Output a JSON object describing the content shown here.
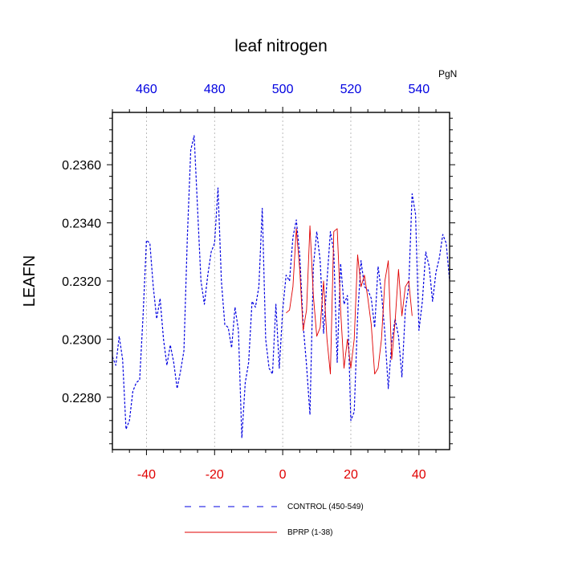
{
  "chart_data": {
    "type": "line",
    "title": "leaf nitrogen",
    "ylabel": "LEAFN",
    "xlabel": "",
    "xlim": [
      -50,
      49
    ],
    "ylim": [
      0.2262,
      0.2378
    ],
    "top_axis": {
      "unit": "PgN",
      "ticks": [
        460,
        480,
        500,
        520,
        540
      ],
      "offset": 500
    },
    "bottom_axis": {
      "ticks": [
        -40,
        -20,
        0,
        20,
        40
      ]
    },
    "y_ticks": [
      0.228,
      0.23,
      0.232,
      0.234,
      0.236
    ],
    "y_tick_labels": [
      "0.2280",
      "0.2300",
      "0.2320",
      "0.2340",
      "0.2360"
    ],
    "bottom_tick_labels": [
      "-40",
      "-20",
      "0",
      "20",
      "40"
    ],
    "top_tick_labels": [
      "460",
      "480",
      "500",
      "520",
      "540"
    ],
    "colors": {
      "control": "#0000e0",
      "bprp": "#e00000",
      "axis": "#000000",
      "grid": "#aaaaaa"
    },
    "series": [
      {
        "name": "CONTROL (450-549)",
        "style": "dashed",
        "x": [
          -50,
          -49,
          -48,
          -47,
          -46,
          -45,
          -44,
          -43,
          -42,
          -41,
          -40,
          -39,
          -38,
          -37,
          -36,
          -35,
          -34,
          -33,
          -32,
          -31,
          -30,
          -29,
          -28,
          -27,
          -26,
          -25,
          -24,
          -23,
          -22,
          -21,
          -20,
          -19,
          -18,
          -17,
          -16,
          -15,
          -14,
          -13,
          -12,
          -11,
          -10,
          -9,
          -8,
          -7,
          -6,
          -5,
          -4,
          -3,
          -2,
          -1,
          0,
          1,
          2,
          3,
          4,
          5,
          6,
          7,
          8,
          9,
          10,
          11,
          12,
          13,
          14,
          15,
          16,
          17,
          18,
          19,
          20,
          21,
          22,
          23,
          24,
          25,
          26,
          27,
          28,
          29,
          30,
          31,
          32,
          33,
          34,
          35,
          36,
          37,
          38,
          39,
          40,
          41,
          42,
          43,
          44,
          45,
          46,
          47,
          48,
          49
        ],
        "values": [
          0.2294,
          0.2291,
          0.2301,
          0.2293,
          0.2269,
          0.2272,
          0.2282,
          0.2285,
          0.2286,
          0.2308,
          0.2334,
          0.2333,
          0.2318,
          0.2307,
          0.2314,
          0.23,
          0.2291,
          0.2298,
          0.2292,
          0.2283,
          0.2289,
          0.2296,
          0.2335,
          0.2365,
          0.237,
          0.2345,
          0.232,
          0.2312,
          0.2322,
          0.233,
          0.2333,
          0.2352,
          0.232,
          0.2305,
          0.2304,
          0.2297,
          0.2311,
          0.2303,
          0.2266,
          0.2285,
          0.2292,
          0.2313,
          0.2311,
          0.2318,
          0.2345,
          0.23,
          0.229,
          0.2288,
          0.2312,
          0.229,
          0.231,
          0.2322,
          0.232,
          0.2335,
          0.2341,
          0.2329,
          0.2305,
          0.2291,
          0.2274,
          0.2325,
          0.2337,
          0.2327,
          0.2302,
          0.232,
          0.2337,
          0.233,
          0.2292,
          0.2326,
          0.2312,
          0.2315,
          0.2272,
          0.2275,
          0.2308,
          0.2327,
          0.2318,
          0.2317,
          0.2314,
          0.2304,
          0.2325,
          0.2316,
          0.2302,
          0.2283,
          0.2299,
          0.2307,
          0.2301,
          0.2287,
          0.231,
          0.2318,
          0.235,
          0.2343,
          0.2303,
          0.2313,
          0.233,
          0.2325,
          0.2313,
          0.2323,
          0.2328,
          0.2336,
          0.2333,
          0.232
        ]
      },
      {
        "name": "BPRP (1-38)",
        "style": "solid",
        "x": [
          1,
          2,
          3,
          4,
          5,
          6,
          7,
          8,
          9,
          10,
          11,
          12,
          13,
          14,
          15,
          16,
          17,
          18,
          19,
          20,
          21,
          22,
          23,
          24,
          25,
          26,
          27,
          28,
          29,
          30,
          31,
          32,
          33,
          34,
          35,
          36,
          37,
          38
        ],
        "values": [
          0.2309,
          0.231,
          0.2318,
          0.2338,
          0.2324,
          0.2303,
          0.231,
          0.2339,
          0.2315,
          0.2301,
          0.2304,
          0.232,
          0.23,
          0.2288,
          0.2337,
          0.2338,
          0.231,
          0.229,
          0.23,
          0.229,
          0.23,
          0.2329,
          0.2318,
          0.2322,
          0.2314,
          0.2305,
          0.2288,
          0.229,
          0.23,
          0.232,
          0.2327,
          0.2293,
          0.2306,
          0.2324,
          0.2308,
          0.2318,
          0.232,
          0.2308
        ]
      }
    ]
  }
}
